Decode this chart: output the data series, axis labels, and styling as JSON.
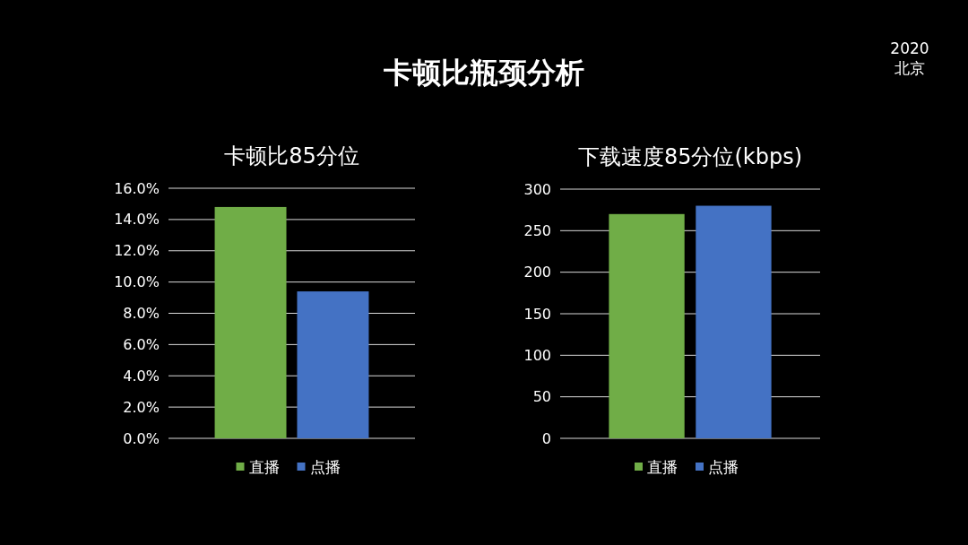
{
  "chart_data": [
    {
      "type": "bar",
      "title": "卡顿比85分位",
      "annotations": [
        "卡顿比瓶颈分析",
        "2020 北京"
      ],
      "categories": [
        null
      ],
      "series": [
        {
          "name": "直播",
          "color": "#70ad47",
          "values": [
            14.8
          ]
        },
        {
          "name": "点播",
          "color": "#4472c4",
          "values": [
            9.4
          ]
        }
      ],
      "ylim": [
        0,
        16
      ],
      "yticks": [
        {
          "value": 0,
          "label": "0.0%"
        },
        {
          "value": 2,
          "label": "2.0%"
        },
        {
          "value": 4,
          "label": "4.0%"
        },
        {
          "value": 6,
          "label": "6.0%"
        },
        {
          "value": 8,
          "label": "8.0%"
        },
        {
          "value": 10,
          "label": "10.0%"
        },
        {
          "value": 12,
          "label": "12.0%"
        },
        {
          "value": 14,
          "label": "14.0%"
        },
        {
          "value": 16,
          "label": "16.0%"
        }
      ],
      "grid": "y",
      "legend": "bottom"
    },
    {
      "type": "bar",
      "title": "下载速度85分位(kbps)",
      "categories": [
        null
      ],
      "series": [
        {
          "name": "直播",
          "color": "#70ad47",
          "values": [
            270
          ]
        },
        {
          "name": "点播",
          "color": "#4472c4",
          "values": [
            280
          ]
        }
      ],
      "ylim": [
        0,
        300
      ],
      "yticks": [
        0,
        50,
        100,
        150,
        200,
        250,
        300
      ],
      "grid": "y",
      "legend": "bottom"
    }
  ]
}
